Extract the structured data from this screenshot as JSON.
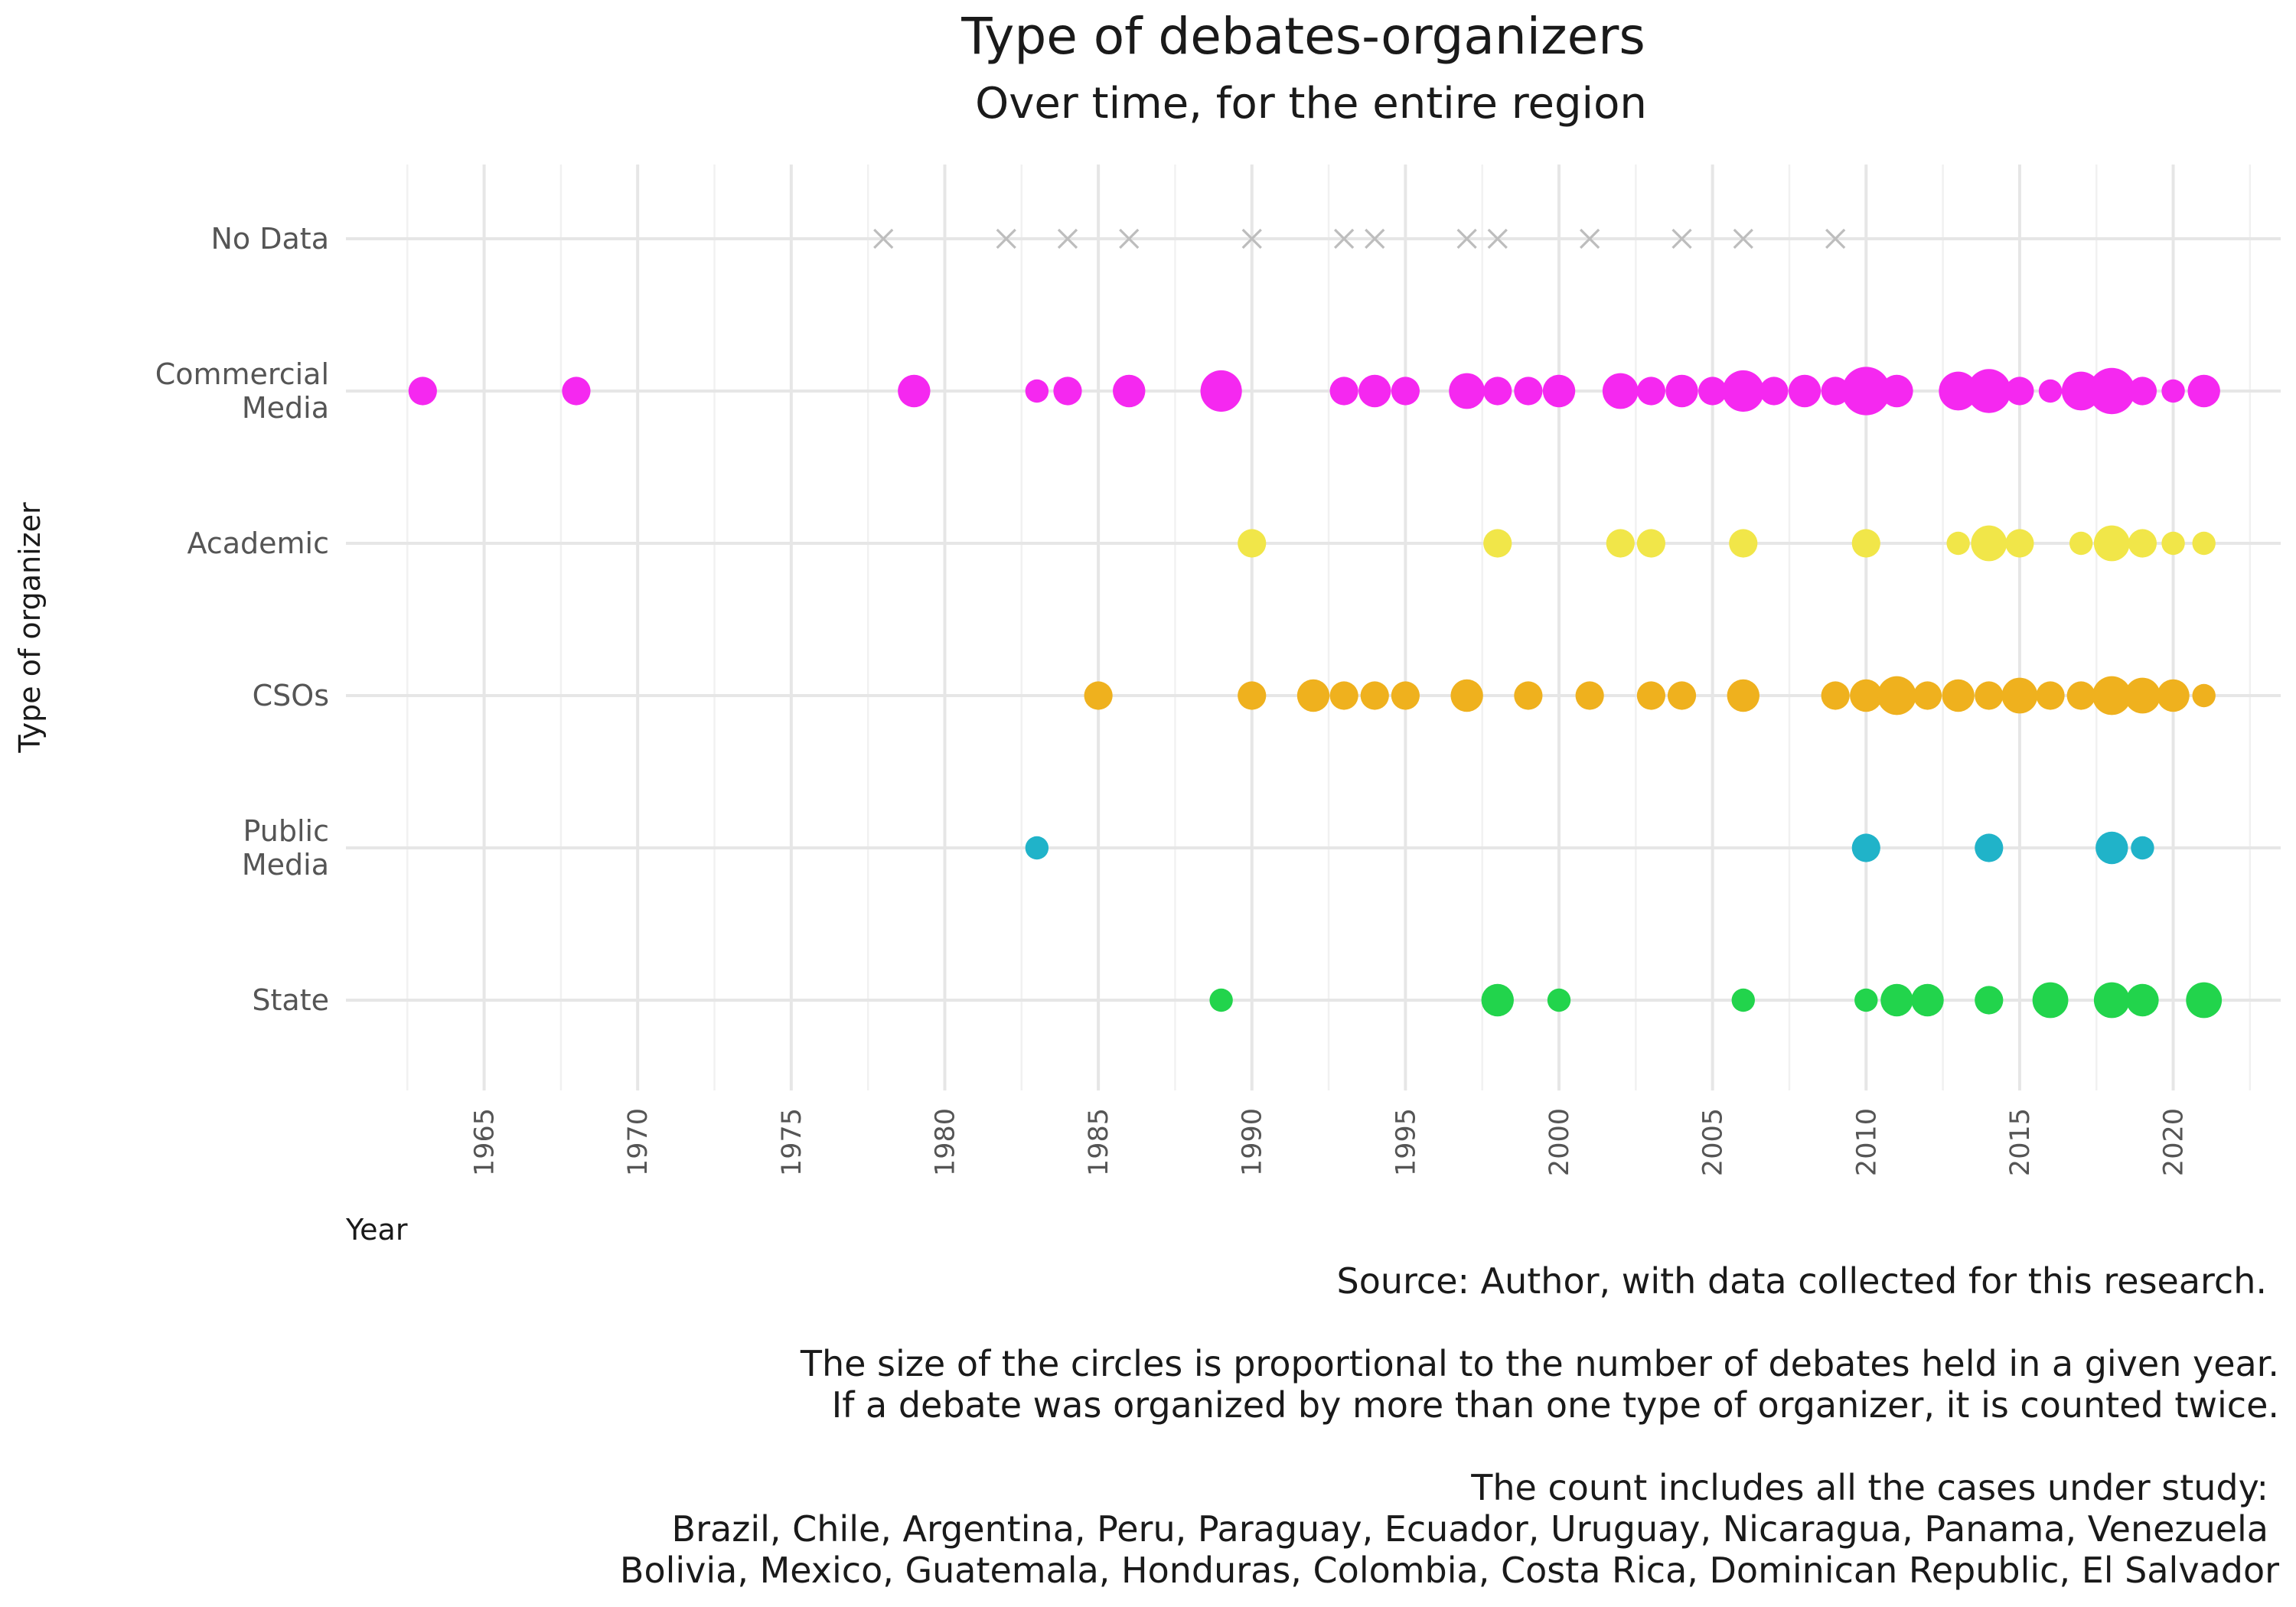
{
  "chart_data": {
    "type": "scatter",
    "title": "Type of debates-organizers",
    "subtitle": "Over time, for the entire region",
    "xlabel": "Year",
    "ylabel": "Type of organizer",
    "x_ticks": [
      1965,
      1970,
      1975,
      1980,
      1985,
      1990,
      1995,
      2000,
      2005,
      2010,
      2015,
      2020
    ],
    "xlim": [
      1960.5,
      2023.5
    ],
    "grid": true,
    "legend": "none",
    "size_encoding": "number of debates",
    "categories": [
      "No Data",
      "Commercial Media",
      "Academic",
      "CSOs",
      "Public Media",
      "State"
    ],
    "category_labels": [
      [
        "No Data"
      ],
      [
        "Commercial",
        "Media"
      ],
      [
        "Academic"
      ],
      [
        "CSOs"
      ],
      [
        "Public",
        "Media"
      ],
      [
        "State"
      ]
    ],
    "series": [
      {
        "category": "No Data",
        "color": "#bdbdbd",
        "marker": "x",
        "points": [
          [
            1978,
            1
          ],
          [
            1982,
            1
          ],
          [
            1984,
            1
          ],
          [
            1986,
            1
          ],
          [
            1990,
            1
          ],
          [
            1993,
            1
          ],
          [
            1994,
            1
          ],
          [
            1997,
            1
          ],
          [
            1998,
            1
          ],
          [
            2001,
            1
          ],
          [
            2004,
            1
          ],
          [
            2006,
            1
          ],
          [
            2009,
            1
          ]
        ]
      },
      {
        "category": "Commercial Media",
        "color": "#f528f0",
        "marker": "circle",
        "points": [
          [
            1963,
            2
          ],
          [
            1968,
            2
          ],
          [
            1979,
            3
          ],
          [
            1983,
            1
          ],
          [
            1984,
            2
          ],
          [
            1986,
            3
          ],
          [
            1989,
            6
          ],
          [
            1993,
            2
          ],
          [
            1994,
            3
          ],
          [
            1995,
            2
          ],
          [
            1997,
            4
          ],
          [
            1998,
            2
          ],
          [
            1999,
            2
          ],
          [
            2000,
            3
          ],
          [
            2002,
            4
          ],
          [
            2003,
            2
          ],
          [
            2004,
            3
          ],
          [
            2005,
            2
          ],
          [
            2006,
            6
          ],
          [
            2007,
            2
          ],
          [
            2008,
            3
          ],
          [
            2009,
            2
          ],
          [
            2010,
            9
          ],
          [
            2011,
            3
          ],
          [
            2013,
            5
          ],
          [
            2014,
            7
          ],
          [
            2015,
            2
          ],
          [
            2016,
            1
          ],
          [
            2017,
            5
          ],
          [
            2018,
            8
          ],
          [
            2019,
            2
          ],
          [
            2020,
            1
          ],
          [
            2021,
            3
          ]
        ]
      },
      {
        "category": "Academic",
        "color": "#f1e649",
        "marker": "circle",
        "points": [
          [
            1990,
            2
          ],
          [
            1998,
            2
          ],
          [
            2002,
            2
          ],
          [
            2003,
            2
          ],
          [
            2006,
            2
          ],
          [
            2010,
            2
          ],
          [
            2013,
            1
          ],
          [
            2014,
            4
          ],
          [
            2015,
            2
          ],
          [
            2017,
            1
          ],
          [
            2018,
            4
          ],
          [
            2019,
            2
          ],
          [
            2020,
            1
          ],
          [
            2021,
            1
          ]
        ]
      },
      {
        "category": "CSOs",
        "color": "#efb11e",
        "marker": "circle",
        "points": [
          [
            1985,
            2
          ],
          [
            1990,
            2
          ],
          [
            1992,
            3
          ],
          [
            1993,
            2
          ],
          [
            1994,
            2
          ],
          [
            1995,
            2
          ],
          [
            1997,
            3
          ],
          [
            1999,
            2
          ],
          [
            2001,
            2
          ],
          [
            2003,
            2
          ],
          [
            2004,
            2
          ],
          [
            2006,
            3
          ],
          [
            2009,
            2
          ],
          [
            2010,
            3
          ],
          [
            2011,
            5
          ],
          [
            2012,
            2
          ],
          [
            2013,
            3
          ],
          [
            2014,
            2
          ],
          [
            2015,
            4
          ],
          [
            2016,
            2
          ],
          [
            2017,
            2
          ],
          [
            2018,
            5
          ],
          [
            2019,
            4
          ],
          [
            2020,
            3
          ],
          [
            2021,
            1
          ]
        ]
      },
      {
        "category": "Public Media",
        "color": "#20b3c9",
        "marker": "circle",
        "points": [
          [
            1983,
            1
          ],
          [
            2010,
            2
          ],
          [
            2014,
            2
          ],
          [
            2018,
            3
          ],
          [
            2019,
            1
          ]
        ]
      },
      {
        "category": "State",
        "color": "#22d44c",
        "marker": "circle",
        "points": [
          [
            1989,
            1
          ],
          [
            1998,
            3
          ],
          [
            2000,
            1
          ],
          [
            2006,
            1
          ],
          [
            2010,
            1
          ],
          [
            2011,
            3
          ],
          [
            2012,
            3
          ],
          [
            2014,
            2
          ],
          [
            2016,
            4
          ],
          [
            2018,
            4
          ],
          [
            2019,
            3
          ],
          [
            2021,
            4
          ]
        ]
      }
    ]
  },
  "caption": {
    "source": "Source: Author, with data collected for this research.",
    "note_line1": "The size of the circles is proportional to the number of debates held in a given year.",
    "note_line2": "If a debate was organized by more than one type of organizer, it is counted twice.",
    "cases_line1": "The count includes all the cases under study:",
    "cases_line2": "Brazil, Chile, Argentina, Peru, Paraguay, Ecuador, Uruguay, Nicaragua, Panama, Venezuela",
    "cases_line3": "Bolivia, Mexico, Guatemala, Honduras, Colombia, Costa Rica, Dominican Republic, El Salvador"
  }
}
